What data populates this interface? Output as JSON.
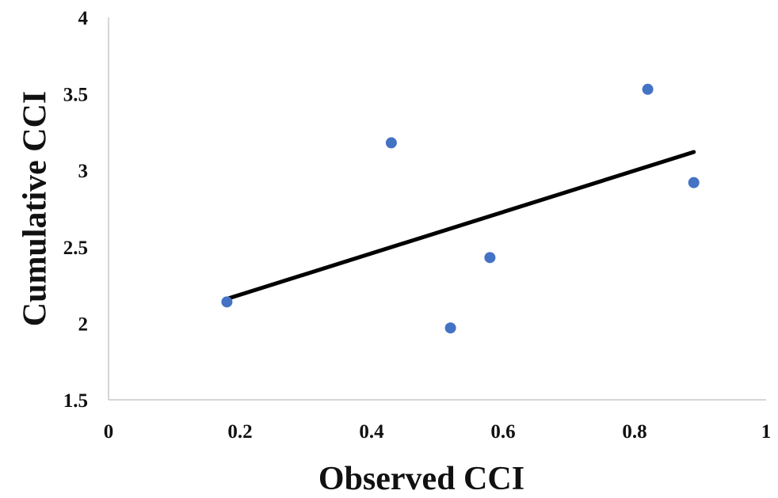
{
  "chart_data": {
    "type": "scatter",
    "title": "",
    "xlabel": "Observed CCI",
    "ylabel": "Cumulative CCI",
    "xlim": [
      0,
      1
    ],
    "ylim": [
      1.5,
      4
    ],
    "x_ticks": [
      "0",
      "0.2",
      "0.4",
      "0.6",
      "0.8",
      "1"
    ],
    "y_ticks": [
      "1.5",
      "2",
      "2.5",
      "3",
      "3.5",
      "4"
    ],
    "grid": false,
    "point_color": "#4472c4",
    "trendline_color": "#000000",
    "series": [
      {
        "points": [
          {
            "x": 0.18,
            "y": 2.14
          },
          {
            "x": 0.43,
            "y": 3.18
          },
          {
            "x": 0.52,
            "y": 1.97
          },
          {
            "x": 0.58,
            "y": 2.43
          },
          {
            "x": 0.82,
            "y": 3.53
          },
          {
            "x": 0.89,
            "y": 2.92
          }
        ]
      }
    ],
    "trendline": {
      "x0": 0.18,
      "y0": 2.16,
      "x1": 0.89,
      "y1": 3.12
    }
  }
}
